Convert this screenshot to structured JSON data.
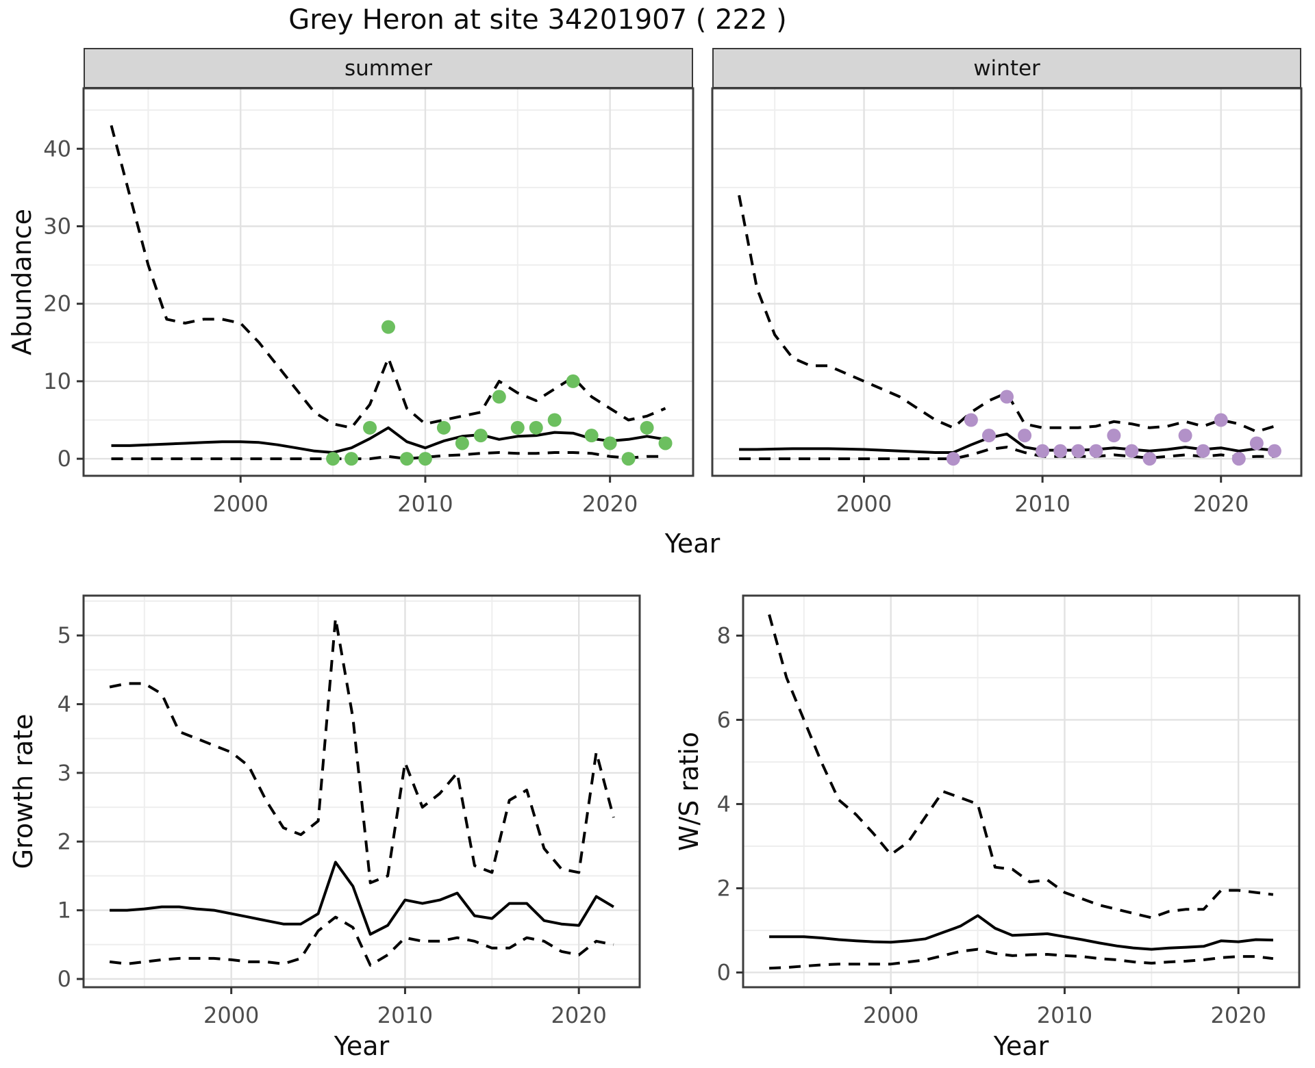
{
  "title": "Grey Heron at site 34201907 ( 222 )",
  "facets": {
    "summer_label": "summer",
    "winter_label": "winter"
  },
  "axis_titles": {
    "abundance": "Abundance",
    "growth_rate": "Growth rate",
    "ws_ratio": "W/S ratio",
    "year": "Year"
  },
  "colors": {
    "summer_points": "#6cbf5f",
    "winter_points": "#b291c8",
    "line": "#000000",
    "grid_major": "#e2e2e2",
    "grid_minor": "#eeeeee",
    "strip_bg": "#d6d6d6",
    "panel_border": "#3d3d3d",
    "axis_text": "#4d4d4d",
    "tick_mark": "#333333"
  },
  "chart_data": [
    {
      "id": "summer",
      "type": "line",
      "title_strip": "summer",
      "xlabel": "Year",
      "ylabel": "Abundance",
      "xlim": [
        1991.5,
        2024.5
      ],
      "ylim": [
        -2.2,
        47.8
      ],
      "x_ticks": {
        "values": [
          2000,
          2010,
          2020
        ],
        "labels": [
          "2000",
          "2010",
          "2020"
        ],
        "minor": [
          1995,
          2005,
          2015
        ]
      },
      "y_ticks": {
        "values": [
          0,
          10,
          20,
          30,
          40
        ],
        "labels": [
          "0",
          "10",
          "20",
          "30",
          "40"
        ],
        "minor": [
          5,
          15,
          25,
          35,
          45
        ]
      },
      "x": [
        1993,
        1994,
        1995,
        1996,
        1997,
        1998,
        1999,
        2000,
        2001,
        2002,
        2003,
        2004,
        2005,
        2006,
        2007,
        2008,
        2009,
        2010,
        2011,
        2012,
        2013,
        2014,
        2015,
        2016,
        2017,
        2018,
        2019,
        2020,
        2021,
        2022,
        2023
      ],
      "series": [
        {
          "name": "upper_95CI",
          "style": "dashed",
          "values": [
            43,
            34,
            25,
            18,
            17.5,
            18,
            18,
            17.5,
            15,
            12,
            9,
            6,
            4.5,
            4,
            7,
            13,
            6.5,
            4.5,
            5,
            5.5,
            6,
            10,
            8.5,
            7.5,
            9,
            10.5,
            8,
            6.5,
            5,
            5.5,
            6.5
          ]
        },
        {
          "name": "median",
          "style": "solid",
          "values": [
            1.7,
            1.7,
            1.8,
            1.9,
            2,
            2.1,
            2.2,
            2.2,
            2.1,
            1.8,
            1.4,
            1,
            0.8,
            1.4,
            2.6,
            4,
            2.2,
            1.4,
            2.3,
            2.9,
            3.1,
            2.5,
            2.9,
            3,
            3.4,
            3.3,
            2.6,
            2.3,
            2.5,
            2.9,
            2.5
          ]
        },
        {
          "name": "lower_95CI",
          "style": "dashed",
          "values": [
            0,
            0,
            0,
            0,
            0,
            0,
            0,
            0,
            0,
            0,
            0,
            0,
            0,
            0,
            0,
            0.3,
            0,
            0.2,
            0.4,
            0.5,
            0.7,
            0.8,
            0.7,
            0.7,
            0.8,
            0.8,
            0.7,
            0.3,
            0.1,
            0.3,
            0.3
          ]
        }
      ],
      "points": {
        "name": "observed_summer_count",
        "color": "#6cbf5f",
        "x": [
          2005,
          2006,
          2007,
          2008,
          2009,
          2010,
          2011,
          2012,
          2013,
          2014,
          2015,
          2016,
          2017,
          2018,
          2019,
          2020,
          2021,
          2022,
          2023
        ],
        "y": [
          0,
          0,
          4,
          17,
          0,
          0,
          4,
          2,
          3,
          8,
          4,
          4,
          5,
          10,
          3,
          2,
          0,
          4,
          2
        ]
      }
    },
    {
      "id": "winter",
      "type": "line",
      "title_strip": "winter",
      "xlabel": "Year",
      "ylabel": "Abundance",
      "xlim": [
        1991.5,
        2024.5
      ],
      "ylim": [
        -2.2,
        47.8
      ],
      "x_ticks": {
        "values": [
          2000,
          2010,
          2020
        ],
        "labels": [
          "2000",
          "2010",
          "2020"
        ],
        "minor": [
          1995,
          2005,
          2015
        ]
      },
      "y_ticks": {
        "values": [
          0,
          10,
          20,
          30,
          40
        ],
        "labels": [],
        "minor": [
          5,
          15,
          25,
          35,
          45
        ]
      },
      "x": [
        1993,
        1994,
        1995,
        1996,
        1997,
        1998,
        1999,
        2000,
        2001,
        2002,
        2003,
        2004,
        2005,
        2006,
        2007,
        2008,
        2009,
        2010,
        2011,
        2012,
        2013,
        2014,
        2015,
        2016,
        2017,
        2018,
        2019,
        2020,
        2021,
        2022,
        2023
      ],
      "series": [
        {
          "name": "upper_95CI",
          "style": "dashed",
          "values": [
            34,
            22,
            16,
            13,
            12,
            12,
            11,
            10,
            9,
            8,
            6.5,
            5,
            4,
            6,
            7.5,
            8.5,
            4.5,
            4,
            4,
            4,
            4.2,
            4.8,
            4.5,
            4,
            4.2,
            4.8,
            4.2,
            5,
            4.5,
            3.5,
            4.2
          ]
        },
        {
          "name": "median",
          "style": "solid",
          "values": [
            1.2,
            1.2,
            1.25,
            1.3,
            1.3,
            1.3,
            1.25,
            1.2,
            1.1,
            1,
            0.9,
            0.8,
            0.8,
            1.8,
            2.7,
            3.2,
            1.5,
            1.1,
            1.1,
            1.1,
            1.2,
            1.4,
            1.2,
            1,
            1.2,
            1.5,
            1.2,
            1.4,
            1,
            1.3,
            1.1
          ]
        },
        {
          "name": "lower_95CI",
          "style": "dashed",
          "values": [
            0,
            0,
            0,
            0,
            0,
            0,
            0,
            0,
            0,
            0,
            0,
            0,
            0,
            0.5,
            1.2,
            1.5,
            0.8,
            0.3,
            0.3,
            0.3,
            0.3,
            0.5,
            0.3,
            0.1,
            0.3,
            0.5,
            0.3,
            0.5,
            0.2,
            0.3,
            0.3
          ]
        }
      ],
      "points": {
        "name": "observed_winter_count",
        "color": "#b291c8",
        "x": [
          2005,
          2006,
          2007,
          2008,
          2009,
          2010,
          2011,
          2012,
          2013,
          2014,
          2015,
          2016,
          2018,
          2019,
          2020,
          2021,
          2022,
          2023
        ],
        "y": [
          0,
          5,
          3,
          8,
          3,
          1,
          1,
          1,
          1,
          3,
          1,
          0,
          3,
          1,
          5,
          0,
          2,
          1
        ]
      }
    },
    {
      "id": "growth",
      "type": "line",
      "title_strip": "",
      "xlabel": "Year",
      "ylabel": "Growth rate",
      "xlim": [
        1991.5,
        2023.5
      ],
      "ylim": [
        -0.12,
        5.58
      ],
      "x_ticks": {
        "values": [
          2000,
          2010,
          2020
        ],
        "labels": [
          "2000",
          "2010",
          "2020"
        ],
        "minor": [
          1995,
          2005,
          2015
        ]
      },
      "y_ticks": {
        "values": [
          0,
          1,
          2,
          3,
          4,
          5
        ],
        "labels": [
          "0",
          "1",
          "2",
          "3",
          "4",
          "5"
        ],
        "minor": [
          0.5,
          1.5,
          2.5,
          3.5,
          4.5,
          5.5
        ]
      },
      "x": [
        1993,
        1994,
        1995,
        1996,
        1997,
        1998,
        1999,
        2000,
        2001,
        2002,
        2003,
        2004,
        2005,
        2006,
        2007,
        2008,
        2009,
        2010,
        2011,
        2012,
        2013,
        2014,
        2015,
        2016,
        2017,
        2018,
        2019,
        2020,
        2021,
        2022
      ],
      "series": [
        {
          "name": "upper_95CI",
          "style": "dashed",
          "values": [
            4.25,
            4.3,
            4.3,
            4.15,
            3.6,
            3.5,
            3.4,
            3.3,
            3.1,
            2.6,
            2.2,
            2.1,
            2.3,
            5.25,
            3.8,
            1.4,
            1.5,
            3.15,
            2.5,
            2.7,
            3,
            1.65,
            1.55,
            2.6,
            2.75,
            1.9,
            1.6,
            1.55,
            3.3,
            2.35
          ]
        },
        {
          "name": "median",
          "style": "solid",
          "values": [
            1,
            1,
            1.02,
            1.05,
            1.05,
            1.02,
            1,
            0.95,
            0.9,
            0.85,
            0.8,
            0.8,
            0.95,
            1.7,
            1.35,
            0.65,
            0.78,
            1.15,
            1.1,
            1.15,
            1.25,
            0.92,
            0.88,
            1.1,
            1.1,
            0.85,
            0.8,
            0.78,
            1.2,
            1.05
          ]
        },
        {
          "name": "lower_95CI",
          "style": "dashed",
          "values": [
            0.25,
            0.22,
            0.25,
            0.28,
            0.3,
            0.3,
            0.3,
            0.28,
            0.25,
            0.25,
            0.22,
            0.3,
            0.7,
            0.9,
            0.75,
            0.2,
            0.35,
            0.6,
            0.55,
            0.55,
            0.6,
            0.55,
            0.45,
            0.45,
            0.6,
            0.55,
            0.4,
            0.35,
            0.55,
            0.5
          ]
        }
      ],
      "points": null
    },
    {
      "id": "ws",
      "type": "line",
      "title_strip": "",
      "xlabel": "Year",
      "ylabel": "W/S ratio",
      "xlim": [
        1991.5,
        2023.5
      ],
      "ylim": [
        -0.35,
        8.95
      ],
      "x_ticks": {
        "values": [
          2000,
          2010,
          2020
        ],
        "labels": [
          "2000",
          "2010",
          "2020"
        ],
        "minor": [
          1995,
          2005,
          2015
        ]
      },
      "y_ticks": {
        "values": [
          0,
          2,
          4,
          6,
          8
        ],
        "labels": [
          "0",
          "2",
          "4",
          "6",
          "8"
        ],
        "minor": [
          1,
          3,
          5,
          7
        ]
      },
      "x": [
        1993,
        1994,
        1995,
        1996,
        1997,
        1998,
        1999,
        2000,
        2001,
        2002,
        2003,
        2004,
        2005,
        2006,
        2007,
        2008,
        2009,
        2010,
        2011,
        2012,
        2013,
        2014,
        2015,
        2016,
        2017,
        2018,
        2019,
        2020,
        2021,
        2022
      ],
      "series": [
        {
          "name": "upper_95CI",
          "style": "dashed",
          "values": [
            8.5,
            7,
            6,
            5,
            4.1,
            3.75,
            3.3,
            2.8,
            3.1,
            3.7,
            4.3,
            4.15,
            4,
            2.5,
            2.45,
            2.15,
            2.2,
            1.9,
            1.75,
            1.6,
            1.5,
            1.4,
            1.3,
            1.45,
            1.5,
            1.5,
            1.95,
            1.95,
            1.9,
            1.85
          ]
        },
        {
          "name": "median",
          "style": "solid",
          "values": [
            0.85,
            0.85,
            0.85,
            0.82,
            0.78,
            0.75,
            0.73,
            0.72,
            0.75,
            0.8,
            0.95,
            1.1,
            1.35,
            1.05,
            0.88,
            0.9,
            0.92,
            0.85,
            0.78,
            0.7,
            0.63,
            0.58,
            0.55,
            0.58,
            0.6,
            0.62,
            0.75,
            0.73,
            0.78,
            0.77
          ]
        },
        {
          "name": "lower_95CI",
          "style": "dashed",
          "values": [
            0.1,
            0.12,
            0.15,
            0.18,
            0.2,
            0.2,
            0.2,
            0.2,
            0.25,
            0.3,
            0.4,
            0.5,
            0.55,
            0.45,
            0.4,
            0.42,
            0.43,
            0.4,
            0.38,
            0.33,
            0.3,
            0.25,
            0.22,
            0.25,
            0.27,
            0.3,
            0.35,
            0.38,
            0.38,
            0.33
          ]
        }
      ],
      "points": null
    }
  ]
}
